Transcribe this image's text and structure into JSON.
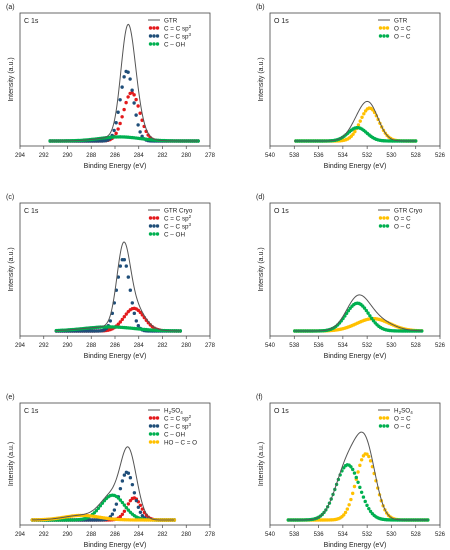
{
  "chart_data": [
    {
      "type": "line",
      "panel": "(a)",
      "region": "C 1s",
      "xlabel": "Binding Energy (eV)",
      "ylabel": "Intensity (a.u.)",
      "xlim": [
        294,
        278
      ],
      "xticks": [
        "294",
        "292",
        "290",
        "288",
        "286",
        "284",
        "282",
        "280",
        "278"
      ],
      "legend": [
        {
          "label": "GTR",
          "sup": ""
        },
        {
          "label": "C = C sp",
          "sup": "2"
        },
        {
          "label": "C – C sp",
          "sup": "3"
        },
        {
          "label": "C – OH",
          "sup": ""
        }
      ],
      "envelope": {
        "name": "GTR",
        "color": "#555555"
      },
      "series": [
        {
          "name": "C = C sp2",
          "color": "#e31a1c",
          "center": 284.6,
          "height": 0.47,
          "fwhm": 1.6,
          "xrange": [
            291.5,
            279
          ]
        },
        {
          "name": "C – C sp3",
          "color": "#1f4e79",
          "center": 285.0,
          "height": 0.68,
          "fwhm": 1.3,
          "xrange": [
            291.5,
            279
          ]
        },
        {
          "name": "C – OH",
          "color": "#00b050",
          "center": 285.6,
          "height": 0.04,
          "fwhm": 4.0,
          "xrange": [
            291.5,
            279
          ]
        }
      ]
    },
    {
      "type": "line",
      "panel": "(b)",
      "region": "O 1s",
      "xlabel": "Binding Energy (eV)",
      "ylabel": "Intensity (a.u.)",
      "xlim": [
        540,
        526
      ],
      "xticks": [
        "540",
        "538",
        "536",
        "534",
        "532",
        "530",
        "528",
        "526"
      ],
      "legend": [
        {
          "label": "GTR",
          "sup": ""
        },
        {
          "label": "O = C",
          "sup": ""
        },
        {
          "label": "O – C",
          "sup": ""
        }
      ],
      "envelope": {
        "name": "GTR",
        "color": "#555555"
      },
      "series": [
        {
          "name": "O = C",
          "color": "#ffc000",
          "center": 531.8,
          "height": 0.32,
          "fwhm": 1.8,
          "xrange": [
            538,
            528
          ]
        },
        {
          "name": "O – C",
          "color": "#00b050",
          "center": 532.8,
          "height": 0.13,
          "fwhm": 1.8,
          "xrange": [
            538,
            528
          ]
        }
      ]
    },
    {
      "type": "line",
      "panel": "(c)",
      "region": "C 1s",
      "xlabel": "Binding Energy (eV)",
      "ylabel": "Intensity (a.u.)",
      "xlim": [
        294,
        278
      ],
      "xticks": [
        "294",
        "292",
        "290",
        "288",
        "286",
        "284",
        "282",
        "280",
        "278"
      ],
      "legend": [
        {
          "label": "GTR Cryo",
          "sup": ""
        },
        {
          "label": "C = C sp",
          "sup": "2"
        },
        {
          "label": "C – C sp",
          "sup": "3"
        },
        {
          "label": "C – OH",
          "sup": ""
        }
      ],
      "envelope": {
        "name": "GTR Cryo",
        "color": "#555555"
      },
      "series": [
        {
          "name": "C = C sp2",
          "color": "#e31a1c",
          "center": 284.4,
          "height": 0.22,
          "fwhm": 2.0,
          "xrange": [
            291,
            280.5
          ]
        },
        {
          "name": "C – C sp3",
          "color": "#1f4e79",
          "center": 285.3,
          "height": 0.7,
          "fwhm": 1.3,
          "xrange": [
            291,
            280.5
          ]
        },
        {
          "name": "C – OH",
          "color": "#00b050",
          "center": 286.5,
          "height": 0.04,
          "fwhm": 5.0,
          "xrange": [
            291,
            280.5
          ]
        }
      ]
    },
    {
      "type": "line",
      "panel": "(d)",
      "region": "O 1s",
      "xlabel": "Binding Energy (eV)",
      "ylabel": "Intensity (a.u.)",
      "xlim": [
        540,
        526
      ],
      "xticks": [
        "540",
        "538",
        "536",
        "534",
        "532",
        "530",
        "528",
        "526"
      ],
      "legend": [
        {
          "label": "GTR Cryo",
          "sup": ""
        },
        {
          "label": "O = C",
          "sup": ""
        },
        {
          "label": "O – C",
          "sup": ""
        }
      ],
      "envelope": {
        "name": "GTR Cryo",
        "color": "#555555"
      },
      "series": [
        {
          "name": "O = C",
          "color": "#ffc000",
          "center": 531.5,
          "height": 0.12,
          "fwhm": 3.2,
          "xrange": [
            538,
            527.5
          ]
        },
        {
          "name": "O – C",
          "color": "#00b050",
          "center": 532.8,
          "height": 0.27,
          "fwhm": 2.2,
          "xrange": [
            538,
            527.5
          ]
        }
      ]
    },
    {
      "type": "line",
      "panel": "(e)",
      "region": "C 1s",
      "xlabel": "Binding Energy (eV)",
      "ylabel": "Intensity (a.u.)",
      "xlim": [
        294,
        278
      ],
      "xticks": [
        "294",
        "292",
        "290",
        "288",
        "286",
        "284",
        "282",
        "280",
        "278"
      ],
      "legend": [
        {
          "label": "H",
          "sub": "2",
          "label2": "SO",
          "sub2": "4"
        },
        {
          "label": "C = C sp",
          "sup": "2"
        },
        {
          "label": "C – C sp",
          "sup": "3"
        },
        {
          "label": "C – OH",
          "sup": ""
        },
        {
          "label": "HO – C = O",
          "sup": ""
        }
      ],
      "envelope": {
        "name": "H2SO4",
        "color": "#555555"
      },
      "series": [
        {
          "name": "C = C sp2",
          "color": "#e31a1c",
          "center": 284.4,
          "height": 0.24,
          "fwhm": 1.4,
          "xrange": [
            293,
            281
          ]
        },
        {
          "name": "C – C sp3",
          "color": "#1f4e79",
          "center": 285.0,
          "height": 0.52,
          "fwhm": 1.4,
          "xrange": [
            293,
            281
          ]
        },
        {
          "name": "C – OH",
          "color": "#00b050",
          "center": 286.2,
          "height": 0.27,
          "fwhm": 2.3,
          "xrange": [
            293,
            281
          ]
        },
        {
          "name": "HO – C = O",
          "color": "#ffc000",
          "center": 288.8,
          "height": 0.05,
          "fwhm": 3.5,
          "xrange": [
            293,
            281
          ]
        }
      ]
    },
    {
      "type": "line",
      "panel": "(f)",
      "region": "O 1s",
      "xlabel": "Binding Energy (eV)",
      "ylabel": "Intensity (a.u.)",
      "xlim": [
        540,
        526
      ],
      "xticks": [
        "540",
        "538",
        "536",
        "534",
        "532",
        "530",
        "528",
        "526"
      ],
      "legend": [
        {
          "label": "H",
          "sub": "2",
          "label2": "SO",
          "sub2": "4"
        },
        {
          "label": "O = C",
          "sup": ""
        },
        {
          "label": "O – C",
          "sup": ""
        }
      ],
      "envelope": {
        "name": "H2SO4",
        "color": "#555555"
      },
      "series": [
        {
          "name": "O = C",
          "color": "#ffc000",
          "center": 532.1,
          "height": 0.72,
          "fwhm": 1.9,
          "xrange": [
            538.5,
            527
          ]
        },
        {
          "name": "O – C",
          "color": "#00b050",
          "center": 533.6,
          "height": 0.6,
          "fwhm": 2.3,
          "xrange": [
            538.5,
            527
          ]
        }
      ]
    }
  ]
}
